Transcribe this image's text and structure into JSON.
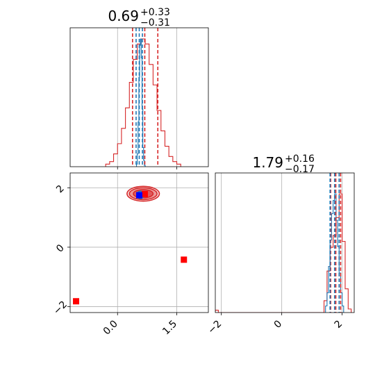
{
  "colors": {
    "red": "#d62728",
    "blue": "#1f77b4",
    "marker_red": "#ff0000",
    "marker_blue": "#0000ff",
    "grid": "#b0b0b0"
  },
  "chart_data": [
    {
      "type": "histogram",
      "panel": "top-left",
      "title": {
        "value": "0.69",
        "upper": "+0.33",
        "lower": "−0.31"
      },
      "xlim": [
        -1.2,
        2.3
      ],
      "grid": true,
      "x_ticks": [
        0.0,
        1.5
      ],
      "series": [
        {
          "color": "red",
          "bin_edges": [
            -0.3,
            -0.2,
            -0.1,
            0.0,
            0.1,
            0.2,
            0.3,
            0.4,
            0.5,
            0.6,
            0.7,
            0.8,
            0.9,
            1.0,
            1.1,
            1.2,
            1.3,
            1.4,
            1.5,
            1.6
          ],
          "counts": [
            0.01,
            0.02,
            0.05,
            0.09,
            0.15,
            0.23,
            0.33,
            0.42,
            0.48,
            0.5,
            0.48,
            0.4,
            0.32,
            0.22,
            0.14,
            0.08,
            0.04,
            0.02,
            0.01
          ]
        },
        {
          "color": "blue",
          "bin_edges": [
            0.48,
            0.5,
            0.52,
            0.54,
            0.56,
            0.58,
            0.6,
            0.62,
            0.64,
            0.66,
            0.68,
            0.7
          ],
          "counts": [
            0.02,
            0.1,
            0.35,
            0.7,
            0.95,
            1.0,
            0.85,
            0.45,
            0.15,
            0.05,
            0.01
          ]
        }
      ],
      "quantile_lines": {
        "red": [
          0.38,
          0.69,
          1.02
        ],
        "blue": [
          0.47,
          0.55,
          0.63
        ]
      }
    },
    {
      "type": "histogram",
      "panel": "bottom-right",
      "title": {
        "value": "1.79",
        "upper": "+0.16",
        "lower": "−0.17"
      },
      "xlim": [
        -2.2,
        2.4
      ],
      "grid": true,
      "x_ticks": [
        -2,
        0,
        2
      ],
      "x_tick_labels": [
        "−2",
        "0",
        "2"
      ],
      "series": [
        {
          "color": "red",
          "bin_edges": [
            -2.2,
            -2.1,
            1.4,
            1.5,
            1.6,
            1.7,
            1.8,
            1.9,
            2.0,
            2.1,
            2.2,
            2.3
          ],
          "counts": [
            0.02,
            0.0,
            0.1,
            0.35,
            0.55,
            0.65,
            0.8,
            1.0,
            0.6,
            0.2,
            0.03
          ]
        },
        {
          "color": "blue",
          "bin_edges": [
            1.45,
            1.5,
            1.55,
            1.6,
            1.65,
            1.7,
            1.75,
            1.8,
            1.85,
            1.9,
            1.95,
            2.0,
            2.05
          ],
          "counts": [
            0.05,
            0.15,
            0.35,
            0.55,
            0.75,
            0.85,
            0.9,
            0.7,
            0.5,
            0.3,
            0.15,
            0.05
          ]
        }
      ],
      "quantile_lines": {
        "red": [
          1.62,
          1.79,
          1.95
        ],
        "blue": [
          1.6,
          1.75,
          1.9
        ]
      }
    },
    {
      "type": "scatter",
      "panel": "bottom-left",
      "xlim": [
        -1.2,
        2.3
      ],
      "ylim": [
        -2.2,
        2.5
      ],
      "grid": true,
      "x_ticks": [
        0.0,
        1.5
      ],
      "x_tick_labels": [
        "0.0",
        "1.5"
      ],
      "y_ticks": [
        2,
        0,
        -2
      ],
      "y_tick_labels": [
        "2",
        "0",
        "−2"
      ],
      "contours": [
        {
          "color": "red",
          "center": [
            0.65,
            1.8
          ],
          "rx": 0.82,
          "ry": 0.5,
          "fill_opacity": 0.2
        },
        {
          "color": "red",
          "center": [
            0.65,
            1.8
          ],
          "rx": 0.7,
          "ry": 0.4,
          "fill_opacity": 0.35
        },
        {
          "color": "red",
          "center": [
            0.65,
            1.8
          ],
          "rx": 0.5,
          "ry": 0.28,
          "fill_opacity": 0.55
        },
        {
          "color": "blue",
          "center": [
            0.58,
            1.76
          ],
          "rx": 0.18,
          "ry": 0.25,
          "fill_opacity": 0.35
        }
      ],
      "markers": [
        {
          "color": "marker_red",
          "x": -1.05,
          "y": -1.82
        },
        {
          "color": "marker_red",
          "x": 1.68,
          "y": -0.42
        },
        {
          "color": "marker_red",
          "x": 0.69,
          "y": 1.79
        },
        {
          "color": "marker_blue",
          "x": 0.55,
          "y": 1.75
        }
      ]
    }
  ]
}
